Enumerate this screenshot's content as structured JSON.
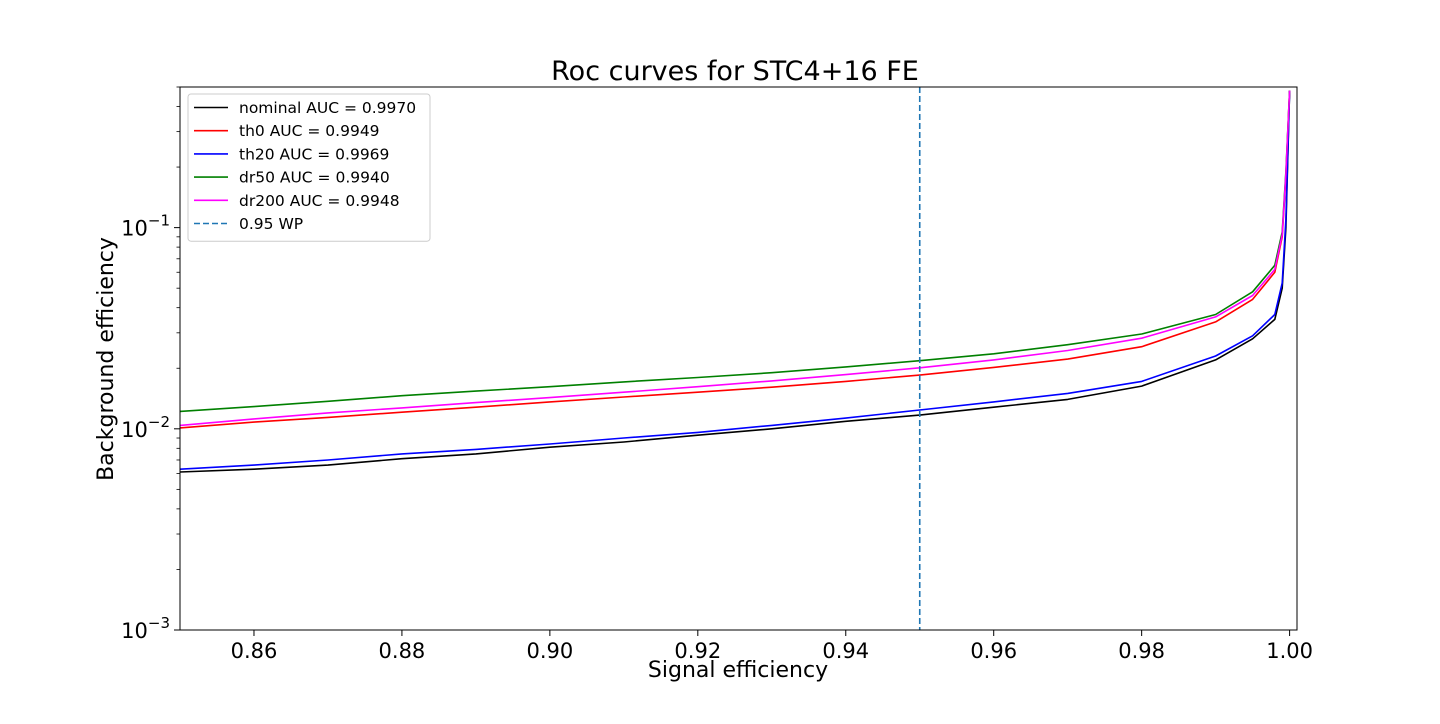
{
  "chart_data": {
    "type": "line",
    "title": "Roc curves for STC4+16 FE",
    "xlabel": "Signal efficiency",
    "ylabel": "Background efficiency",
    "xlim": [
      0.85,
      1.001
    ],
    "ylim": [
      0.001,
      0.5
    ],
    "yscale": "log",
    "grid": false,
    "legend_position": "top-left",
    "x_ticks": [
      0.86,
      0.88,
      0.9,
      0.92,
      0.94,
      0.96,
      0.98,
      1.0
    ],
    "x_tick_labels": [
      "0.86",
      "0.88",
      "0.90",
      "0.92",
      "0.94",
      "0.96",
      "0.98",
      "1.00"
    ],
    "y_major_ticks": [
      {
        "value": 0.001,
        "base": "10",
        "exp": "−3"
      },
      {
        "value": 0.01,
        "base": "10",
        "exp": "−2"
      },
      {
        "value": 0.1,
        "base": "10",
        "exp": "−1"
      }
    ],
    "reference_line": {
      "name": "0.95 WP",
      "x": 0.95,
      "color": "#1f77b4",
      "style": "dashed"
    },
    "series": [
      {
        "name": "nominal AUC = 0.9970",
        "color": "#000000",
        "x": [
          0.85,
          0.86,
          0.87,
          0.88,
          0.89,
          0.9,
          0.91,
          0.92,
          0.93,
          0.94,
          0.95,
          0.96,
          0.97,
          0.98,
          0.99,
          0.995,
          0.998,
          0.999,
          0.9995,
          1.0
        ],
        "y": [
          0.0061,
          0.0063,
          0.0066,
          0.0071,
          0.0075,
          0.0081,
          0.0086,
          0.0093,
          0.01,
          0.0109,
          0.0117,
          0.0128,
          0.014,
          0.0163,
          0.022,
          0.028,
          0.035,
          0.05,
          0.1,
          0.48
        ]
      },
      {
        "name": "th0 AUC = 0.9949",
        "color": "#ff0000",
        "x": [
          0.85,
          0.86,
          0.87,
          0.88,
          0.89,
          0.9,
          0.91,
          0.92,
          0.93,
          0.94,
          0.95,
          0.96,
          0.97,
          0.98,
          0.99,
          0.995,
          0.998,
          0.999,
          0.9995,
          1.0
        ],
        "y": [
          0.0101,
          0.0108,
          0.0114,
          0.0121,
          0.0128,
          0.0136,
          0.0144,
          0.0152,
          0.0161,
          0.0172,
          0.0185,
          0.0202,
          0.0222,
          0.0256,
          0.034,
          0.044,
          0.06,
          0.09,
          0.18,
          0.48
        ]
      },
      {
        "name": "th20 AUC = 0.9969",
        "color": "#0000ff",
        "x": [
          0.85,
          0.86,
          0.87,
          0.88,
          0.89,
          0.9,
          0.91,
          0.92,
          0.93,
          0.94,
          0.95,
          0.96,
          0.97,
          0.98,
          0.99,
          0.995,
          0.998,
          0.999,
          0.9995,
          1.0
        ],
        "y": [
          0.0063,
          0.0066,
          0.007,
          0.0075,
          0.0079,
          0.0084,
          0.009,
          0.0096,
          0.0104,
          0.0113,
          0.0124,
          0.0136,
          0.015,
          0.0172,
          0.023,
          0.029,
          0.037,
          0.053,
          0.11,
          0.48
        ]
      },
      {
        "name": "dr50 AUC = 0.9940",
        "color": "#008000",
        "x": [
          0.85,
          0.86,
          0.87,
          0.88,
          0.89,
          0.9,
          0.91,
          0.92,
          0.93,
          0.94,
          0.95,
          0.96,
          0.97,
          0.98,
          0.99,
          0.995,
          0.998,
          0.999,
          0.9995,
          1.0
        ],
        "y": [
          0.0122,
          0.0129,
          0.0137,
          0.0146,
          0.0154,
          0.0162,
          0.0171,
          0.018,
          0.019,
          0.0203,
          0.0218,
          0.0236,
          0.0262,
          0.0296,
          0.037,
          0.048,
          0.065,
          0.095,
          0.19,
          0.48
        ]
      },
      {
        "name": "dr200 AUC = 0.9948",
        "color": "#ff00ff",
        "x": [
          0.85,
          0.86,
          0.87,
          0.88,
          0.89,
          0.9,
          0.91,
          0.92,
          0.93,
          0.94,
          0.95,
          0.96,
          0.97,
          0.98,
          0.99,
          0.995,
          0.998,
          0.999,
          0.9995,
          1.0
        ],
        "y": [
          0.0104,
          0.0112,
          0.012,
          0.0127,
          0.0135,
          0.0143,
          0.0152,
          0.0162,
          0.0173,
          0.0186,
          0.0201,
          0.022,
          0.0245,
          0.0282,
          0.036,
          0.046,
          0.062,
          0.092,
          0.185,
          0.48
        ]
      }
    ]
  }
}
